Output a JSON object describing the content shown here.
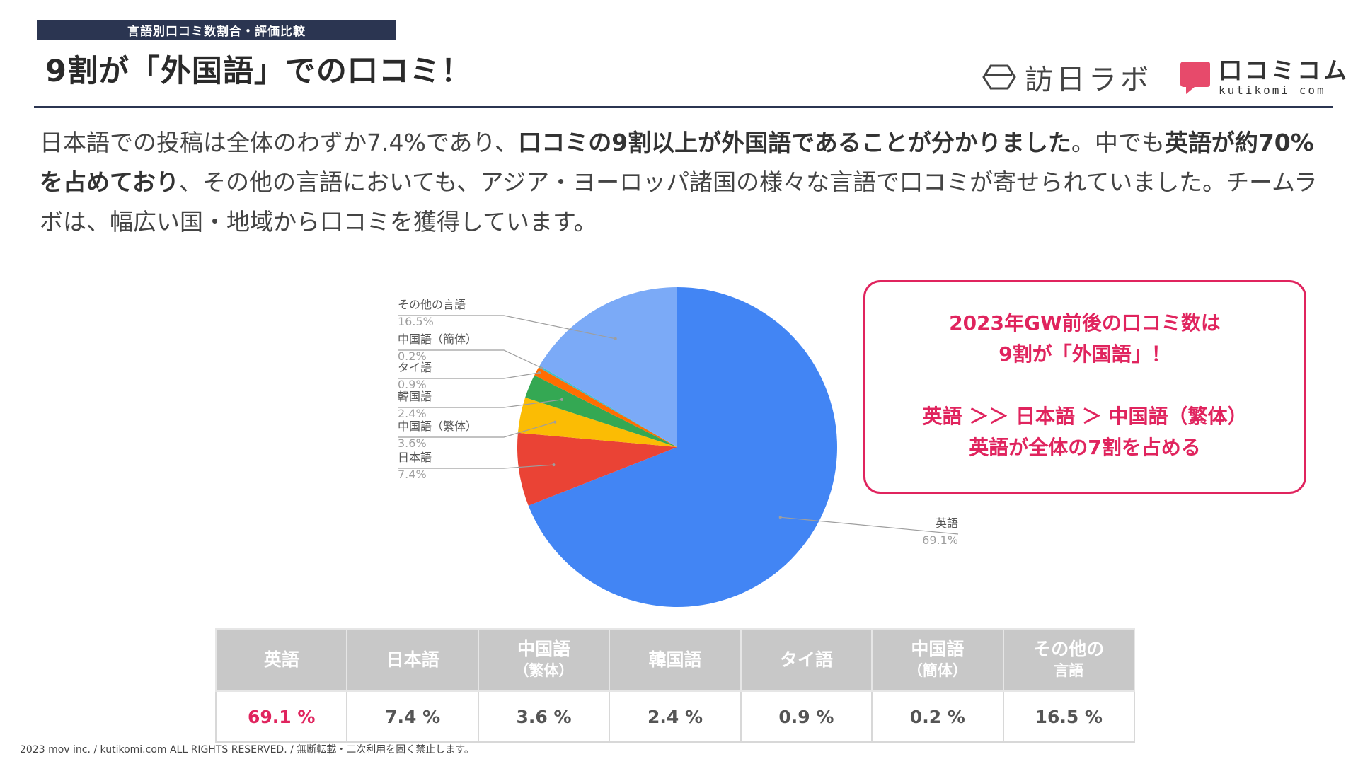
{
  "header": {
    "section_tag": "言語別口コミ数割合・評価比較",
    "title": "9割が「外国語」での口コミ！",
    "logo_lab": "訪日ラボ",
    "logo_kutikomi": "口コミコム",
    "logo_kutikomi_sub": "kutikomi com"
  },
  "summary": {
    "part1": "日本語での投稿は全体のわずか7.4%であり、",
    "part2": "口コミの9割以上が外国語であることが分かりました",
    "part3": "。中でも",
    "part4": "英語が約70%を占めており",
    "part5": "、その他の言語においても、アジア・ヨーロッパ諸国の様々な言語で口コミが寄せられていました。チームラボは、幅広い国・地域から口コミを獲得しています。"
  },
  "callout": {
    "line1": "2023年GW前後の口コミ数は",
    "line2": "9割が「外国語」！",
    "line3": "英語 ＞＞ 日本語 ＞ 中国語（繁体）",
    "line4": "英語が全体の7割を占める"
  },
  "chart_data": {
    "type": "pie",
    "title": "",
    "start": "top, clockwise",
    "series": [
      {
        "name": "英語",
        "value": 69.1,
        "label": "69.1%",
        "color": "#4285f4"
      },
      {
        "name": "日本語",
        "value": 7.4,
        "label": "7.4%",
        "color": "#ea4335"
      },
      {
        "name": "中国語（繁体）",
        "value": 3.6,
        "label": "3.6%",
        "color": "#fbbc04"
      },
      {
        "name": "韓国語",
        "value": 2.4,
        "label": "2.4%",
        "color": "#34a853"
      },
      {
        "name": "タイ語",
        "value": 0.9,
        "label": "0.9%",
        "color": "#ff6d01"
      },
      {
        "name": "中国語（簡体）",
        "value": 0.2,
        "label": "0.2%",
        "color": "#46bdc6"
      },
      {
        "name": "その他の言語",
        "value": 16.5,
        "label": "16.5%",
        "color": "#7baaf7"
      }
    ]
  },
  "table": {
    "headers": [
      {
        "main": "英語",
        "sub": ""
      },
      {
        "main": "日本語",
        "sub": ""
      },
      {
        "main": "中国語",
        "sub": "（繁体）"
      },
      {
        "main": "韓国語",
        "sub": ""
      },
      {
        "main": "タイ語",
        "sub": ""
      },
      {
        "main": "中国語",
        "sub": "（簡体）"
      },
      {
        "main": "その他の",
        "sub": "言語"
      }
    ],
    "values": [
      "69.1 %",
      "7.4 %",
      "3.6 %",
      "2.4 %",
      "0.9 %",
      "0.2 %",
      "16.5 %"
    ]
  },
  "footer": "2023 mov inc. / kutikomi.com ALL RIGHTS RESERVED. / 無断転載・二次利用を固く禁止します。"
}
